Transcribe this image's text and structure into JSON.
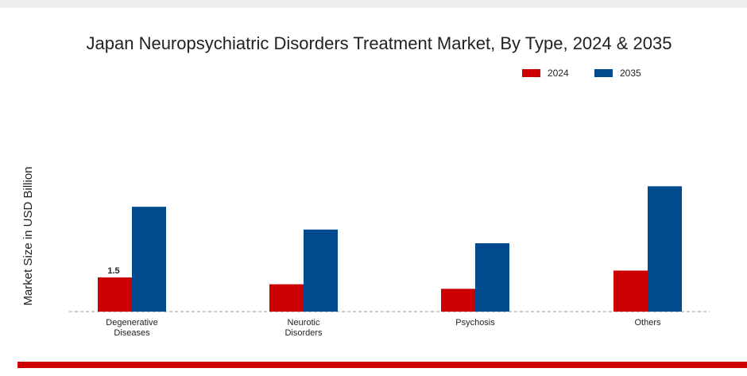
{
  "chart_data": {
    "type": "bar",
    "title": "Japan Neuropsychiatric Disorders Treatment Market, By Type, 2024 & 2035",
    "y_label": "Market Size in USD Billion",
    "categories": [
      "Degenerative Diseases",
      "Neurotic Disorders",
      "Psychosis",
      "Others"
    ],
    "series": [
      {
        "name": "2024",
        "color": "#cc0000",
        "values": [
          1.5,
          1.2,
          1.0,
          1.8
        ]
      },
      {
        "name": "2035",
        "color": "#004a8d",
        "values": [
          4.6,
          3.6,
          3.0,
          5.5
        ]
      }
    ],
    "legend": "top-right"
  }
}
